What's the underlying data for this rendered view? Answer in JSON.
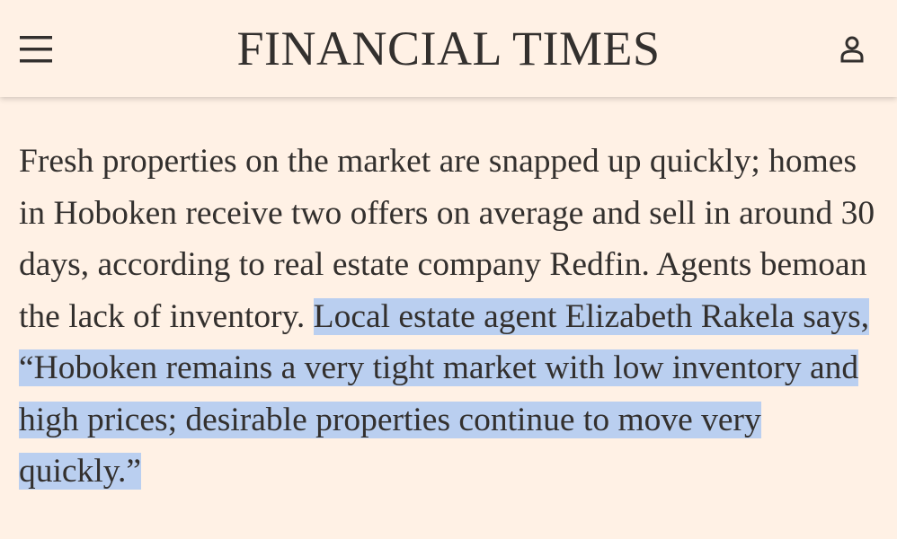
{
  "header": {
    "title": "FINANCIAL TIMES"
  },
  "article": {
    "text": "Fresh properties on the market are snapped up quickly; homes in Hoboken receive two offers on average and sell in around 30 days, according to real estate company Redfin. Agents bemoan the lack of inventory.",
    "highlighted_text": "Local estate agent Elizabeth Rakela says, “Hoboken remains a very tight market with low inventory and high prices; desirable properties continue to move very quickly.”"
  }
}
